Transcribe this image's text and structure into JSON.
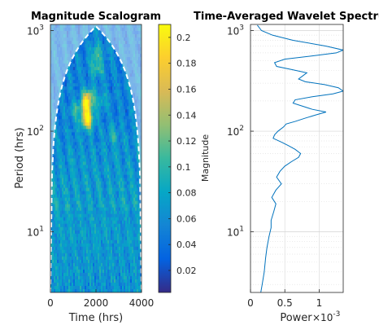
{
  "chart_data": [
    {
      "type": "heatmap",
      "title": "Magnitude Scalogram",
      "xlabel": "Time (hrs)",
      "ylabel": "Period (hrs)",
      "xlim": [
        0,
        4000
      ],
      "ylim": [
        2.5,
        1150
      ],
      "yscale": "log",
      "xticks": [
        0,
        2000,
        4000
      ],
      "xtick_labels": [
        "0",
        "2000",
        "4000"
      ],
      "yticks": [
        10,
        100,
        1000
      ],
      "ytick_labels": [
        "10",
        "10",
        "10"
      ],
      "ytick_exponents": [
        "1",
        "2",
        "3"
      ],
      "colormap": "parula",
      "colorbar": {
        "label": "Magnitude",
        "range": [
          0.003,
          0.21
        ],
        "ticks": [
          0.02,
          0.04,
          0.06,
          0.08,
          0.1,
          0.12,
          0.14,
          0.16,
          0.18,
          0.2
        ],
        "tick_labels": [
          "0.02",
          "0.04",
          "0.06",
          "0.08",
          "0.1",
          "0.12",
          "0.14",
          "0.16",
          "0.18",
          "0.2"
        ]
      },
      "cone_of_influence": "dashed white",
      "hotspots": [
        {
          "time": 1620,
          "period": 130,
          "magnitude": 0.2
        },
        {
          "time": 1580,
          "period": 180,
          "magnitude": 0.16
        },
        {
          "time": 1650,
          "period": 220,
          "magnitude": 0.13
        },
        {
          "time": 2050,
          "period": 420,
          "magnitude": 0.11
        },
        {
          "time": 2000,
          "period": 600,
          "magnitude": 0.1
        },
        {
          "time": 2250,
          "period": 200,
          "magnitude": 0.09
        },
        {
          "time": 1100,
          "period": 160,
          "magnitude": 0.09
        },
        {
          "time": 2800,
          "period": 90,
          "magnitude": 0.08
        }
      ]
    },
    {
      "type": "line",
      "title": "Time-Averaged Wavelet Spectrum",
      "xlabel": "Power",
      "x_multiplier": "×10",
      "x_multiplier_exponent": "-3",
      "ylabel": "",
      "xlim": [
        0,
        0.00135
      ],
      "ylim": [
        2.5,
        1150
      ],
      "yscale": "log",
      "grid": true,
      "xticks": [
        0,
        0.0005,
        0.001
      ],
      "xtick_labels": [
        "0",
        "0.5",
        "1"
      ],
      "yticks": [
        10,
        100,
        1000
      ],
      "ytick_labels": [
        "10",
        "10",
        "10"
      ],
      "ytick_exponents": [
        "1",
        "2",
        "3"
      ],
      "color": "#0072bd",
      "series": [
        {
          "period": [
            1130,
            1000,
            900,
            800,
            700,
            640,
            600,
            560,
            520,
            480,
            440,
            410,
            380,
            350,
            330,
            310,
            290,
            270,
            250,
            235,
            220,
            205,
            190,
            178,
            165,
            155,
            145,
            135,
            125,
            118,
            110,
            100,
            92,
            85,
            78,
            72,
            66,
            60,
            55,
            50,
            45,
            40,
            35,
            30,
            26,
            22,
            19,
            16,
            13,
            11,
            9,
            7,
            5.5,
            4,
            3,
            2.5
          ],
          "power": [
            0.0001,
            0.00016,
            0.00032,
            0.00062,
            0.0011,
            0.00135,
            0.00125,
            0.0009,
            0.0005,
            0.00035,
            0.00038,
            0.0006,
            0.00082,
            0.00075,
            0.0007,
            0.0008,
            0.00108,
            0.00128,
            0.00135,
            0.0012,
            0.0009,
            0.00065,
            0.00062,
            0.00075,
            0.0009,
            0.0011,
            0.00095,
            0.0008,
            0.00065,
            0.00052,
            0.00048,
            0.0004,
            0.00035,
            0.00033,
            0.00045,
            0.00055,
            0.00065,
            0.00073,
            0.0007,
            0.0006,
            0.0005,
            0.00043,
            0.00038,
            0.00045,
            0.00037,
            0.00031,
            0.00037,
            0.00034,
            0.0003,
            0.0003,
            0.00027,
            0.00024,
            0.00022,
            0.0002,
            0.00017,
            0.00015
          ]
        }
      ]
    }
  ]
}
